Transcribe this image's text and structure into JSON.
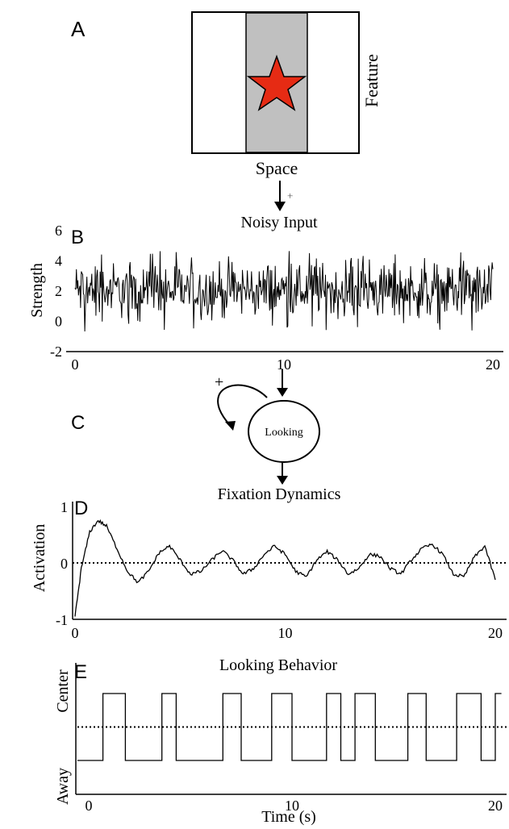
{
  "panels": {
    "a": {
      "letter": "A",
      "x_label": "Space",
      "y_label": "Feature",
      "star_color": "#e62b14",
      "band_color": "#c0c0c0"
    },
    "b": {
      "letter": "B",
      "title": "Noisy Input",
      "y_label": "Strength",
      "arrow_sign": "+"
    },
    "c": {
      "letter": "C",
      "node_label": "Looking",
      "loop_sign": "+"
    },
    "d": {
      "letter": "D",
      "title": "Fixation Dynamics",
      "y_label": "Activation"
    },
    "e": {
      "letter": "E",
      "title": "Looking Behavior",
      "y_label_top": "Center",
      "y_label_bottom": "Away",
      "x_label": "Time (s)"
    }
  },
  "chart_data": [
    {
      "id": "noisy-input",
      "type": "line",
      "ylabel": "Strength",
      "x_ticks": [
        0,
        10,
        20
      ],
      "y_ticks": [
        -2,
        0,
        2,
        4,
        6
      ],
      "xlim": [
        0,
        20
      ],
      "ylim": [
        -2,
        6
      ],
      "signal": {
        "mean": 2,
        "spread": 0.9,
        "min": -0.8,
        "max": 4.6,
        "samples": 600
      }
    },
    {
      "id": "fixation-dynamics",
      "type": "line",
      "ylabel": "Activation",
      "x_ticks": [
        0,
        10,
        20
      ],
      "y_ticks": [
        -1,
        0,
        1
      ],
      "xlim": [
        0,
        20
      ],
      "ylim": [
        -1,
        1
      ],
      "threshold": 0,
      "x": [
        0,
        0.3,
        0.7,
        1.1,
        1.5,
        2.0,
        2.5,
        3.0,
        3.5,
        4.0,
        4.5,
        5.0,
        5.5,
        6.0,
        6.5,
        7.0,
        7.5,
        8.0,
        8.5,
        9.0,
        9.5,
        10.0,
        10.5,
        11.0,
        11.5,
        12.0,
        12.5,
        13.0,
        13.5,
        14.0,
        14.5,
        15.0,
        15.5,
        16.0,
        16.5,
        17.0,
        17.5,
        18.0,
        18.5,
        19.0,
        19.5,
        20.0
      ],
      "y": [
        -0.95,
        -0.1,
        0.55,
        0.75,
        0.65,
        0.25,
        -0.15,
        -0.35,
        -0.15,
        0.18,
        0.3,
        0.05,
        -0.2,
        -0.15,
        0.05,
        0.22,
        0.05,
        -0.2,
        -0.1,
        0.15,
        0.3,
        0.15,
        -0.15,
        -0.25,
        0.05,
        0.2,
        0.05,
        -0.2,
        -0.1,
        0.15,
        0.12,
        -0.1,
        -0.2,
        0.05,
        0.25,
        0.33,
        0.15,
        -0.2,
        -0.25,
        0.1,
        0.3,
        -0.3
      ]
    },
    {
      "id": "looking-behavior",
      "type": "line",
      "ylabel_top": "Center",
      "ylabel_bottom": "Away",
      "xlabel": "Time (s)",
      "x_ticks": [
        0,
        10,
        20
      ],
      "xlim": [
        0,
        20
      ],
      "levels": [
        "Away",
        "Center"
      ],
      "threshold_level": 0.5,
      "x": [
        0,
        0.7,
        0.7,
        1.8,
        1.8,
        3.6,
        3.6,
        4.3,
        4.3,
        6.6,
        6.6,
        7.5,
        7.5,
        9.0,
        9.0,
        10.0,
        10.0,
        11.7,
        11.7,
        12.4,
        12.4,
        13.1,
        13.1,
        14.1,
        14.1,
        15.7,
        15.7,
        16.6,
        16.6,
        18.1,
        18.1,
        19.3,
        19.3,
        20.0,
        20.0,
        20.3
      ],
      "y": [
        0,
        0,
        1,
        1,
        0,
        0,
        1,
        1,
        0,
        0,
        1,
        1,
        0,
        0,
        1,
        1,
        0,
        0,
        1,
        1,
        0,
        0,
        1,
        1,
        0,
        0,
        1,
        1,
        0,
        0,
        1,
        1,
        0,
        0,
        1,
        1
      ]
    }
  ]
}
